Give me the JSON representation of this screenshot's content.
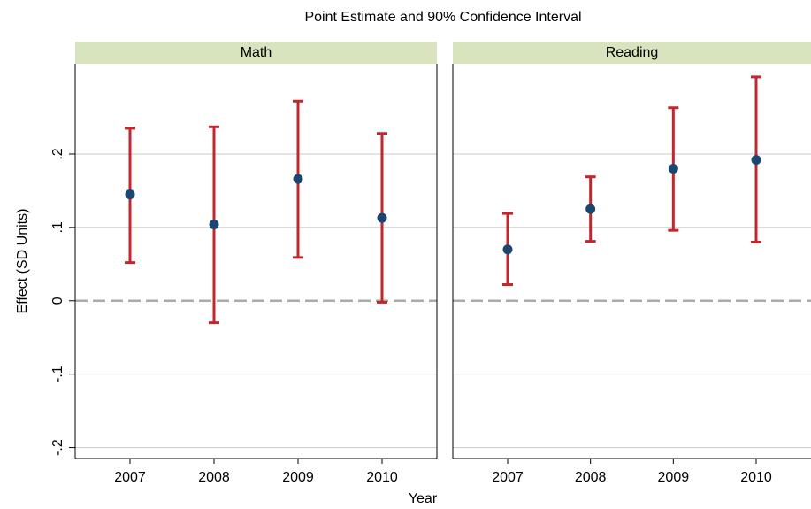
{
  "chart_data": {
    "type": "errorbar",
    "title": "Point Estimate and 90% Confidence Interval",
    "y_label": "Effect (SD Units)",
    "x_label": "Year",
    "ylim": [
      -0.215,
      0.323
    ],
    "yticks": [
      {
        "value": -0.2,
        "label": "-.2"
      },
      {
        "value": -0.1,
        "label": "-.1"
      },
      0,
      {
        "value": 0.1,
        "label": ".1"
      },
      {
        "value": 0.2,
        "label": ".2"
      }
    ],
    "reference_line": 0,
    "grid": true,
    "point_color": "#1a476f",
    "bar_color": "#c1272d",
    "header_color": "#d7e4bd",
    "panels": [
      {
        "title": "Math",
        "categories": [
          "2007",
          "2008",
          "2009",
          "2010"
        ],
        "values": [
          0.145,
          0.104,
          0.166,
          0.113
        ],
        "lower": [
          0.052,
          -0.03,
          0.059,
          -0.002
        ],
        "upper": [
          0.235,
          0.237,
          0.272,
          0.228
        ]
      },
      {
        "title": "Reading",
        "categories": [
          "2007",
          "2008",
          "2009",
          "2010"
        ],
        "values": [
          0.07,
          0.125,
          0.18,
          0.192
        ],
        "lower": [
          0.022,
          0.081,
          0.096,
          0.08
        ],
        "upper": [
          0.119,
          0.169,
          0.263,
          0.305
        ]
      }
    ]
  }
}
